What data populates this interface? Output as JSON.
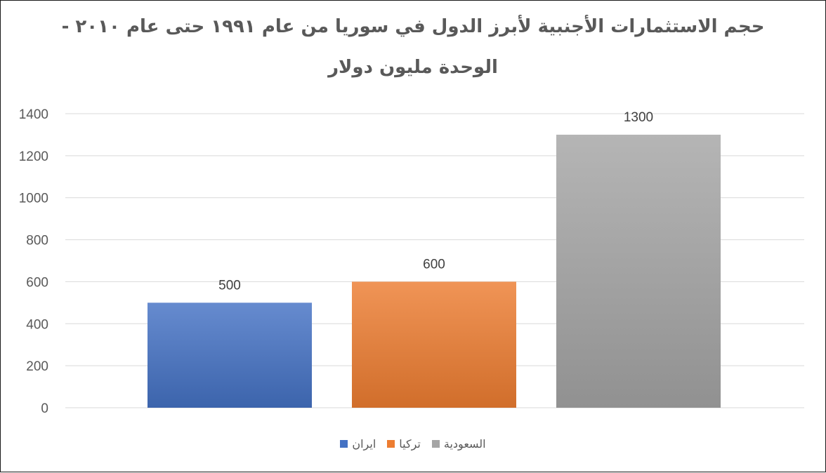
{
  "chart_data": {
    "type": "bar",
    "title_line1": "حجم الاستثمارات الأجنبية لأبرز الدول في سوريا من عام ١٩٩١ حتى عام ٢٠١٠ -",
    "title_line2": "الوحدة مليون دولار",
    "categories": [
      "ايران",
      "تركيا",
      "السعودية"
    ],
    "values": [
      500,
      600,
      1300
    ],
    "colors": [
      "#4472c4",
      "#ed7d31",
      "#a5a5a5"
    ],
    "ylim": [
      0,
      1400
    ],
    "yticks": [
      0,
      200,
      400,
      600,
      800,
      1000,
      1200,
      1400
    ],
    "grid": true,
    "legend_position": "bottom"
  }
}
